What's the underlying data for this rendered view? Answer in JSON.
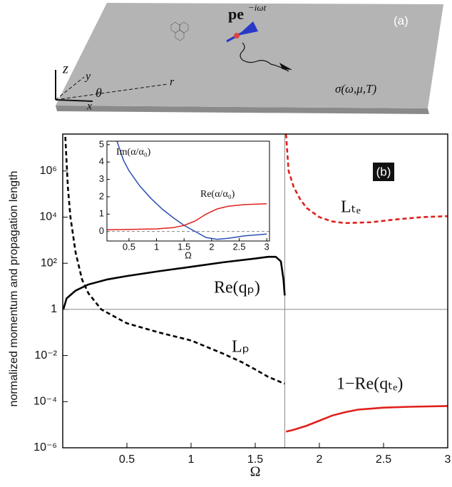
{
  "illustration": {
    "panel_label": "(a)",
    "dipole": "pe",
    "dipole_exponent": "−iωt",
    "axis_z": "z",
    "axis_y": "y",
    "axis_x": "x",
    "radius": "r",
    "angle": "θ",
    "conductivity": "σ(ω,μ,T)"
  },
  "chart_data": [
    {
      "type": "line",
      "panel_label": "(b)",
      "y_label": "normalized momentum and propagation length",
      "x_label": "Ω",
      "xlim": [
        0,
        3
      ],
      "xticks": [
        0.5,
        1,
        1.5,
        2,
        2.5,
        3
      ],
      "ylim": [
        1e-06,
        40000000.0
      ],
      "yscale": "log",
      "yticks": [
        {
          "value": 1e-06,
          "label": "10⁻⁶"
        },
        {
          "value": 0.0001,
          "label": "10⁻⁴"
        },
        {
          "value": 0.01,
          "label": "10⁻²"
        },
        1,
        {
          "value": 100,
          "label": "10²"
        },
        {
          "value": 10000,
          "label": "10⁴"
        },
        {
          "value": 1000000,
          "label": "10⁶"
        }
      ],
      "hline": 1,
      "vline": 1.73,
      "series": [
        {
          "name": "Re(qₚ)",
          "color": "#000000",
          "dash": false,
          "x": [
            0.005,
            0.03,
            0.1,
            0.2,
            0.35,
            0.5,
            0.75,
            1,
            1.25,
            1.5,
            1.6,
            1.66,
            1.7,
            1.72,
            1.73
          ],
          "values": [
            1,
            3,
            6.5,
            12,
            20,
            28,
            45,
            70,
            110,
            160,
            190,
            190,
            120,
            20,
            4
          ]
        },
        {
          "name": "Lₚ",
          "color": "#000000",
          "dash": true,
          "x": [
            0.02,
            0.04,
            0.06,
            0.1,
            0.15,
            0.2,
            0.3,
            0.5,
            0.75,
            1,
            1.25,
            1.4,
            1.5,
            1.6,
            1.7,
            1.73
          ],
          "values": [
            30000000,
            200000,
            10000,
            300,
            20,
            5,
            1,
            0.25,
            0.1,
            0.045,
            0.012,
            0.005,
            0.0025,
            0.0012,
            0.0007,
            0.0006
          ]
        },
        {
          "name": "Lₜₑ",
          "color": "#e0201c",
          "dash": true,
          "x": [
            1.74,
            1.76,
            1.8,
            1.85,
            1.9,
            2,
            2.1,
            2.2,
            2.4,
            2.6,
            2.8,
            3
          ],
          "values": [
            40000000,
            1000000,
            200000,
            60000,
            25000,
            10000,
            6500,
            5500,
            6000,
            8000,
            10000,
            11000
          ]
        },
        {
          "name": "1−Re(qₜₑ)",
          "color": "#e0201c",
          "dash": false,
          "x": [
            1.74,
            1.8,
            1.9,
            2,
            2.1,
            2.2,
            2.3,
            2.5,
            2.7,
            3
          ],
          "values": [
            5e-06,
            6e-06,
            9e-06,
            1.5e-05,
            2.5e-05,
            3.5e-05,
            4.5e-05,
            5.5e-05,
            6e-05,
            6.5e-05
          ]
        }
      ]
    },
    {
      "type": "line",
      "x_label": "Ω",
      "xlim": [
        0.1,
        3.05
      ],
      "xticks": [
        0.5,
        1,
        1.5,
        2,
        2.5,
        3
      ],
      "ylim": [
        -0.55,
        5.2
      ],
      "yticks": [
        0,
        1,
        2,
        3,
        4,
        5
      ],
      "hline": 0,
      "series": [
        {
          "name": "Im(α/α₀)",
          "color": "#2b4fb5",
          "dash": false,
          "x": [
            0.25,
            0.4,
            0.5,
            0.7,
            0.9,
            1.1,
            1.3,
            1.5,
            1.7,
            1.9,
            2.1,
            2.3,
            2.6,
            3
          ],
          "values": [
            5.5,
            4.1,
            3.5,
            2.6,
            1.9,
            1.3,
            0.8,
            0.35,
            0,
            -0.35,
            -0.45,
            -0.4,
            -0.25,
            -0.15
          ]
        },
        {
          "name": "Re(α/α₀)",
          "color": "#e0201c",
          "dash": false,
          "x": [
            0.1,
            0.5,
            1,
            1.3,
            1.5,
            1.7,
            1.9,
            2.1,
            2.3,
            2.6,
            3
          ],
          "values": [
            0.1,
            0.12,
            0.15,
            0.22,
            0.35,
            0.6,
            1,
            1.3,
            1.45,
            1.55,
            1.6
          ]
        }
      ]
    }
  ]
}
